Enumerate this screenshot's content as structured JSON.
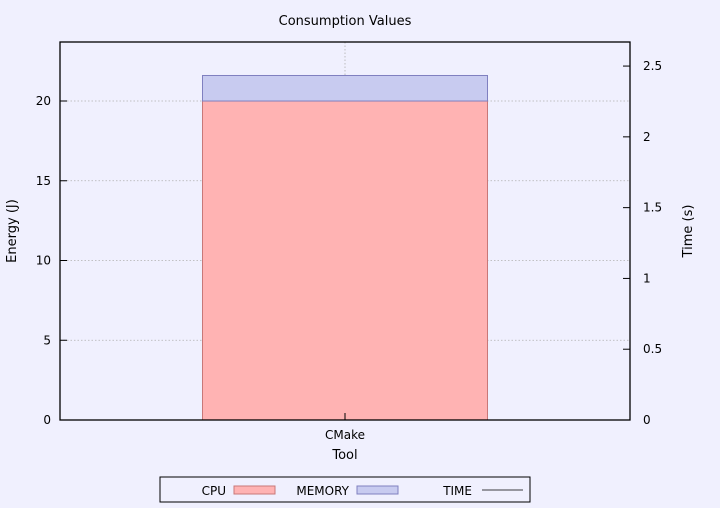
{
  "chart_data": {
    "type": "bar",
    "title": "Consumption Values",
    "xlabel": "Tool",
    "ylabel": "Energy (J)",
    "y2label": "Time (s)",
    "categories": [
      "CMake"
    ],
    "stacked": true,
    "series": [
      {
        "name": "CPU",
        "values": [
          20.0
        ],
        "color": "#ffb3b3",
        "stroke": "#c87878"
      },
      {
        "name": "MEMORY",
        "values": [
          1.6
        ],
        "color": "#c8cbf0",
        "stroke": "#8080c0"
      },
      {
        "name": "TIME",
        "values": [
          null
        ],
        "color": "#000000",
        "axis": "right",
        "kind": "line"
      }
    ],
    "ylim": [
      0,
      23.7
    ],
    "yticks": [
      0,
      5,
      10,
      15,
      20
    ],
    "y2lim": [
      0,
      2.67
    ],
    "y2ticks": [
      0,
      0.5,
      1,
      1.5,
      2,
      2.5
    ],
    "y2tick_labels": [
      "0",
      "0.5",
      "1",
      "1.5",
      "2",
      "2.5"
    ],
    "grid": true,
    "legend_position": "bottom"
  }
}
